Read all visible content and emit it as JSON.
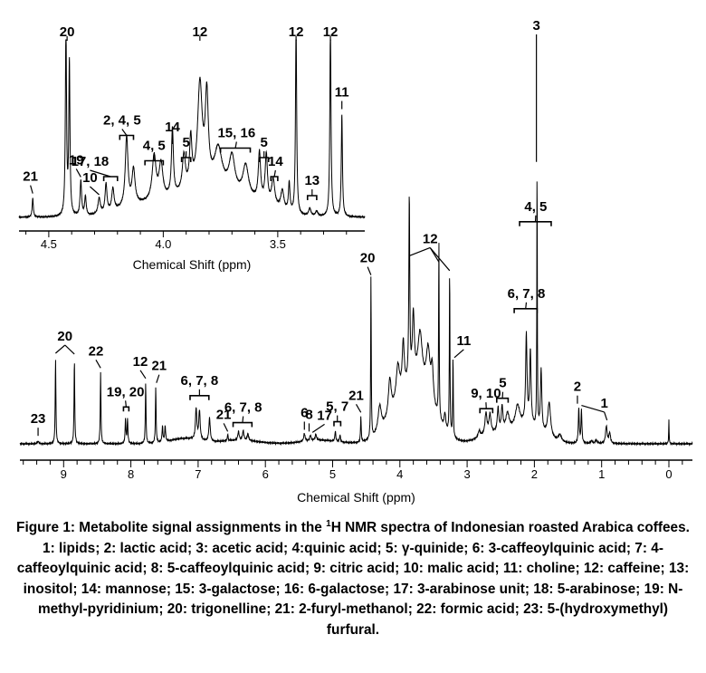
{
  "chart_data": [
    {
      "type": "line",
      "id": "main",
      "title": "",
      "xlabel": "Chemical Shift (ppm)",
      "ylabel": "",
      "xlim": [
        9.65,
        -0.35
      ],
      "x_reversed": true,
      "grid": false,
      "xticks": [
        9,
        8,
        7,
        6,
        5,
        4,
        3,
        2,
        1,
        0
      ],
      "series": [
        {
          "peaks": [
            {
              "x": 9.38,
              "h": 0.03,
              "w": 0.012
            },
            {
              "x": 9.12,
              "h": 0.99,
              "w": 0.006
            },
            {
              "x": 8.84,
              "h": 0.98,
              "w": 0.006
            },
            {
              "x": 8.45,
              "h": 0.82,
              "w": 0.006
            },
            {
              "x": 8.08,
              "h": 0.28,
              "w": 0.007
            },
            {
              "x": 8.05,
              "h": 0.28,
              "w": 0.007
            },
            {
              "x": 7.78,
              "h": 0.7,
              "w": 0.006
            },
            {
              "x": 7.63,
              "h": 0.65,
              "w": 0.006
            },
            {
              "x": 7.53,
              "h": 0.18,
              "w": 0.008
            },
            {
              "x": 7.49,
              "h": 0.18,
              "w": 0.008
            },
            {
              "x": 7.03,
              "h": 0.36,
              "w": 0.012
            },
            {
              "x": 6.98,
              "h": 0.34,
              "w": 0.012
            },
            {
              "x": 6.83,
              "h": 0.27,
              "w": 0.012
            },
            {
              "x": 6.56,
              "h": 0.08,
              "w": 0.006
            },
            {
              "x": 6.4,
              "h": 0.1,
              "w": 0.012
            },
            {
              "x": 6.33,
              "h": 0.11,
              "w": 0.012
            },
            {
              "x": 6.26,
              "h": 0.08,
              "w": 0.012
            },
            {
              "x": 5.42,
              "h": 0.09,
              "w": 0.012
            },
            {
              "x": 5.33,
              "h": 0.06,
              "w": 0.012
            },
            {
              "x": 5.25,
              "h": 0.07,
              "w": 0.012
            },
            {
              "x": 4.96,
              "h": 0.12,
              "w": 0.008
            },
            {
              "x": 4.89,
              "h": 0.08,
              "w": 0.008
            },
            {
              "x": 4.58,
              "h": 0.3,
              "w": 0.006
            },
            {
              "x": 4.43,
              "h": 1.9,
              "w": 0.005
            },
            {
              "x": 4.3,
              "h": 0.3,
              "w": 0.03
            },
            {
              "x": 4.15,
              "h": 0.42,
              "w": 0.025
            },
            {
              "x": 4.03,
              "h": 0.4,
              "w": 0.03
            },
            {
              "x": 3.95,
              "h": 0.55,
              "w": 0.018
            },
            {
              "x": 3.86,
              "h": 2.12,
              "w": 0.008
            },
            {
              "x": 3.8,
              "h": 0.75,
              "w": 0.018
            },
            {
              "x": 3.7,
              "h": 0.6,
              "w": 0.04
            },
            {
              "x": 3.58,
              "h": 0.55,
              "w": 0.035
            },
            {
              "x": 3.52,
              "h": 0.4,
              "w": 0.02
            },
            {
              "x": 3.42,
              "h": 2.05,
              "w": 0.005
            },
            {
              "x": 3.33,
              "h": 0.18,
              "w": 0.015
            },
            {
              "x": 3.26,
              "h": 1.95,
              "w": 0.005
            },
            {
              "x": 3.21,
              "h": 0.95,
              "w": 0.005
            },
            {
              "x": 2.82,
              "h": 0.08,
              "w": 0.02
            },
            {
              "x": 2.72,
              "h": 0.25,
              "w": 0.018
            },
            {
              "x": 2.66,
              "h": 0.22,
              "w": 0.018
            },
            {
              "x": 2.54,
              "h": 0.27,
              "w": 0.014
            },
            {
              "x": 2.48,
              "h": 0.28,
              "w": 0.014
            },
            {
              "x": 2.4,
              "h": 0.2,
              "w": 0.03
            },
            {
              "x": 2.25,
              "h": 0.25,
              "w": 0.04
            },
            {
              "x": 2.12,
              "h": 1.02,
              "w": 0.012
            },
            {
              "x": 2.06,
              "h": 0.85,
              "w": 0.012
            },
            {
              "x": 1.96,
              "h": 3.2,
              "w": 0.004
            },
            {
              "x": 1.9,
              "h": 0.7,
              "w": 0.012
            },
            {
              "x": 1.78,
              "h": 0.4,
              "w": 0.025
            },
            {
              "x": 1.62,
              "h": 0.08,
              "w": 0.03
            },
            {
              "x": 1.34,
              "h": 0.4,
              "w": 0.008
            },
            {
              "x": 1.3,
              "h": 0.38,
              "w": 0.008
            },
            {
              "x": 1.15,
              "h": 0.03,
              "w": 0.015
            },
            {
              "x": 1.08,
              "h": 0.04,
              "w": 0.015
            },
            {
              "x": 0.93,
              "h": 0.2,
              "w": 0.014
            },
            {
              "x": 0.88,
              "h": 0.12,
              "w": 0.014
            },
            {
              "x": 0.0,
              "h": 0.27,
              "w": 0.004
            }
          ],
          "humps": [
            {
              "x": 3.75,
              "h": 0.6,
              "w": 0.35
            },
            {
              "x": 4.05,
              "h": 0.15,
              "w": 0.3
            },
            {
              "x": 2.1,
              "h": 0.2,
              "w": 0.3
            },
            {
              "x": 6.4,
              "h": 0.04,
              "w": 0.4
            },
            {
              "x": 7.2,
              "h": 0.06,
              "w": 0.3
            },
            {
              "x": 5.2,
              "h": 0.04,
              "w": 0.35
            },
            {
              "x": 2.6,
              "h": 0.1,
              "w": 0.3
            }
          ]
        }
      ],
      "annotations": [
        {
          "text": "1",
          "x": 0.96,
          "x_tip": 0.92,
          "y_tip": 0.23
        },
        {
          "text": "1",
          "x": 0.96,
          "x_tip": 1.3,
          "y_tip": 0.4
        },
        {
          "text": "2",
          "x": 1.36,
          "x_tip": 1.36,
          "y_tip": 0.42
        },
        {
          "text": "3",
          "x": 1.97,
          "x_tip": 1.97,
          "y_tip": 3.2
        },
        {
          "text": "4, 5",
          "x": 1.98,
          "x_tip": 1.98,
          "y_tip": 2.45,
          "bracket": [
            1.75,
            2.22
          ]
        },
        {
          "text": "6, 7, 8",
          "x": 2.12,
          "x_tip": 2.12,
          "y_tip": 1.45,
          "bracket": [
            1.96,
            2.3
          ]
        },
        {
          "text": "5",
          "x": 2.47,
          "x_tip": 2.47,
          "y_tip": 0.42,
          "bracket": [
            2.39,
            2.56
          ]
        },
        {
          "text": "9, 10",
          "x": 2.72,
          "x_tip": 2.72,
          "y_tip": 0.3,
          "bracket": [
            2.62,
            2.81
          ]
        },
        {
          "text": "11",
          "x": 3.05,
          "x_tip": 3.19,
          "y_tip": 0.95
        },
        {
          "text": "12",
          "x": 3.55,
          "x_tip": 3.86,
          "y_tip": 2.12
        },
        {
          "text": "12",
          "x": 3.55,
          "x_tip": 3.42,
          "y_tip": 2.05
        },
        {
          "text": "12",
          "x": 3.55,
          "x_tip": 3.26,
          "y_tip": 1.95
        },
        {
          "text": "20",
          "x": 4.48,
          "x_tip": 4.43,
          "y_tip": 1.9
        },
        {
          "text": "21",
          "x": 4.65,
          "x_tip": 4.58,
          "y_tip": 0.32
        },
        {
          "text": "5, 7",
          "x": 4.93,
          "x_tip": 4.93,
          "y_tip": 0.15,
          "bracket": [
            4.88,
            4.98
          ]
        },
        {
          "text": "17",
          "x": 5.12,
          "x_tip": 5.3,
          "y_tip": 0.09
        },
        {
          "text": "8",
          "x": 5.35,
          "x_tip": 5.35,
          "y_tip": 0.1
        },
        {
          "text": "6",
          "x": 5.42,
          "x_tip": 5.42,
          "y_tip": 0.12
        },
        {
          "text": "6, 7, 8",
          "x": 6.33,
          "x_tip": 6.33,
          "y_tip": 0.14,
          "bracket": [
            6.2,
            6.48
          ]
        },
        {
          "text": "21",
          "x": 6.62,
          "x_tip": 6.56,
          "y_tip": 0.1
        },
        {
          "text": "6, 7, 8",
          "x": 6.98,
          "x_tip": 6.98,
          "y_tip": 0.45,
          "bracket": [
            6.84,
            7.12
          ]
        },
        {
          "text": "21",
          "x": 7.58,
          "x_tip": 7.62,
          "y_tip": 0.66
        },
        {
          "text": "12",
          "x": 7.86,
          "x_tip": 7.78,
          "y_tip": 0.71
        },
        {
          "text": "19, 20",
          "x": 8.08,
          "x_tip": 8.07,
          "y_tip": 0.32,
          "bracket": [
            8.03,
            8.11
          ]
        },
        {
          "text": "22",
          "x": 8.52,
          "x_tip": 8.45,
          "y_tip": 0.83
        },
        {
          "text": "20",
          "x": 8.98,
          "x_tip": 9.12,
          "y_tip": 1.0
        },
        {
          "text": "20",
          "x": 8.98,
          "x_tip": 8.84,
          "y_tip": 0.99
        },
        {
          "text": "23",
          "x": 9.38,
          "x_tip": 9.38,
          "y_tip": 0.05
        }
      ]
    },
    {
      "type": "line",
      "id": "inset",
      "title": "",
      "xlabel": "Chemical Shift (ppm)",
      "ylabel": "",
      "xlim": [
        4.63,
        3.12
      ],
      "x_reversed": true,
      "grid": false,
      "xticks": [
        4.5,
        4.0,
        3.5
      ],
      "series": [
        {
          "peaks": [
            {
              "x": 4.57,
              "h": 0.3,
              "w": 0.003
            },
            {
              "x": 4.425,
              "h": 3.0,
              "w": 0.003
            },
            {
              "x": 4.41,
              "h": 2.4,
              "w": 0.003
            },
            {
              "x": 4.36,
              "h": 0.55,
              "w": 0.004
            },
            {
              "x": 4.34,
              "h": 0.3,
              "w": 0.004
            },
            {
              "x": 4.28,
              "h": 0.25,
              "w": 0.006
            },
            {
              "x": 4.25,
              "h": 0.45,
              "w": 0.005
            },
            {
              "x": 4.22,
              "h": 0.35,
              "w": 0.006
            },
            {
              "x": 4.16,
              "h": 1.1,
              "w": 0.007
            },
            {
              "x": 4.13,
              "h": 0.55,
              "w": 0.008
            },
            {
              "x": 4.04,
              "h": 0.7,
              "w": 0.01
            },
            {
              "x": 4.01,
              "h": 0.55,
              "w": 0.01
            },
            {
              "x": 3.96,
              "h": 1.05,
              "w": 0.005
            },
            {
              "x": 3.91,
              "h": 0.55,
              "w": 0.008
            },
            {
              "x": 3.88,
              "h": 0.75,
              "w": 0.006
            },
            {
              "x": 3.84,
              "h": 1.6,
              "w": 0.012
            },
            {
              "x": 3.81,
              "h": 1.35,
              "w": 0.008
            },
            {
              "x": 3.76,
              "h": 0.6,
              "w": 0.02
            },
            {
              "x": 3.7,
              "h": 0.55,
              "w": 0.015
            },
            {
              "x": 3.64,
              "h": 0.5,
              "w": 0.015
            },
            {
              "x": 3.58,
              "h": 0.75,
              "w": 0.006
            },
            {
              "x": 3.55,
              "h": 0.75,
              "w": 0.006
            },
            {
              "x": 3.52,
              "h": 0.4,
              "w": 0.008
            },
            {
              "x": 3.48,
              "h": 0.3,
              "w": 0.008
            },
            {
              "x": 3.45,
              "h": 0.45,
              "w": 0.004
            },
            {
              "x": 3.42,
              "h": 3.0,
              "w": 0.003
            },
            {
              "x": 3.36,
              "h": 0.12,
              "w": 0.006
            },
            {
              "x": 3.33,
              "h": 0.08,
              "w": 0.006
            },
            {
              "x": 3.27,
              "h": 3.0,
              "w": 0.003
            },
            {
              "x": 3.22,
              "h": 1.6,
              "w": 0.003
            }
          ],
          "humps": [
            {
              "x": 3.8,
              "h": 0.45,
              "w": 0.2
            },
            {
              "x": 4.1,
              "h": 0.15,
              "w": 0.15
            },
            {
              "x": 3.55,
              "h": 0.1,
              "w": 0.1
            }
          ]
        }
      ],
      "annotations": [
        {
          "text": "21",
          "x": 4.58,
          "x_tip": 4.57,
          "y_tip": 0.32
        },
        {
          "text": "20",
          "x": 4.42,
          "x_tip": 4.42,
          "y_tip": 3.1
        },
        {
          "text": "19",
          "x": 4.38,
          "x_tip": 4.36,
          "y_tip": 0.58
        },
        {
          "text": "10",
          "x": 4.32,
          "x_tip": 4.28,
          "y_tip": 0.3
        },
        {
          "text": "17, 18",
          "x": 4.32,
          "x_tip": 4.23,
          "y_tip": 0.5,
          "bracket": [
            4.2,
            4.26
          ]
        },
        {
          "text": "2, 4, 5",
          "x": 4.18,
          "x_tip": 4.16,
          "y_tip": 1.15,
          "bracket": [
            4.13,
            4.19
          ]
        },
        {
          "text": "4, 5",
          "x": 4.04,
          "x_tip": 4.04,
          "y_tip": 0.75,
          "bracket": [
            4.0,
            4.08
          ]
        },
        {
          "text": "14",
          "x": 3.96,
          "x_tip": 3.96,
          "y_tip": 1.1
        },
        {
          "text": "5",
          "x": 3.9,
          "x_tip": 3.9,
          "y_tip": 0.8,
          "bracket": [
            3.88,
            3.92
          ]
        },
        {
          "text": "12",
          "x": 3.84,
          "x_tip": 3.84,
          "y_tip": 3.1
        },
        {
          "text": "15, 16",
          "x": 3.68,
          "x_tip": 3.68,
          "y_tip": 0.95,
          "bracket": [
            3.62,
            3.75
          ]
        },
        {
          "text": "5",
          "x": 3.56,
          "x_tip": 3.56,
          "y_tip": 0.8,
          "bracket": [
            3.54,
            3.58
          ]
        },
        {
          "text": "14",
          "x": 3.51,
          "x_tip": 3.51,
          "y_tip": 0.5,
          "bracket": [
            3.5,
            3.53
          ]
        },
        {
          "text": "12",
          "x": 3.42,
          "x_tip": 3.42,
          "y_tip": 3.1
        },
        {
          "text": "13",
          "x": 3.35,
          "x_tip": 3.35,
          "y_tip": 0.2,
          "bracket": [
            3.33,
            3.37
          ]
        },
        {
          "text": "12",
          "x": 3.27,
          "x_tip": 3.27,
          "y_tip": 3.1
        },
        {
          "text": "11",
          "x": 3.22,
          "x_tip": 3.22,
          "y_tip": 1.65
        }
      ]
    }
  ],
  "caption": {
    "prefix": "Figure 1: Metabolite signal assignments in the ",
    "superscript": "1",
    "suffix": "H NMR spectra of Indonesian roasted Arabica coffees. 1:  lipids; 2: lactic acid; 3: acetic acid; 4:quinic acid; 5: γ-quinide; 6: 3-caffeoylquinic acid; 7: 4-caffeoylquinic acid; 8: 5-caffeoylquinic acid; 9: citric acid; 10: malic acid; 11: choline; 12: caffeine; 13: inositol; 14: mannose; 15: 3-galactose; 16: 6-galactose; 17: 3-arabinose unit; 18: 5-arabinose; 19: N-methyl-pyridinium; 20: trigonelline; 21: 2-furyl-methanol; 22: formic acid; 23: 5-(hydroxymethyl) furfural."
  }
}
